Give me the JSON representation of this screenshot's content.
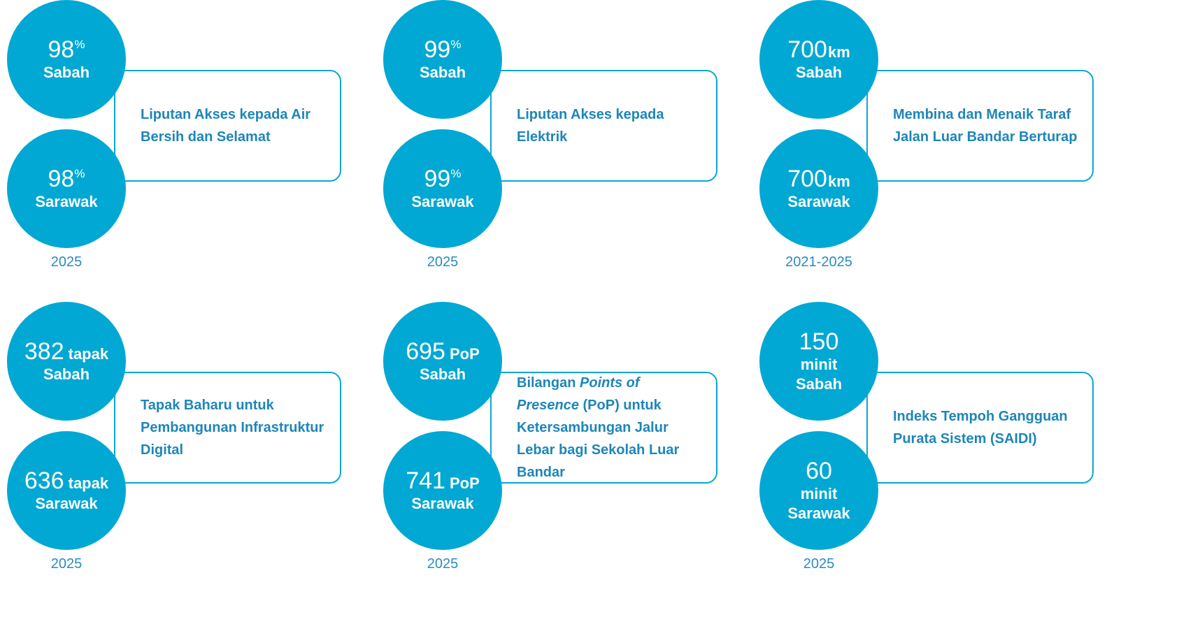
{
  "items": [
    {
      "circles": [
        {
          "value": 98,
          "unit": "%",
          "unit_style": "superscript",
          "region": "Sabah"
        },
        {
          "value": 98,
          "unit": "%",
          "unit_style": "superscript",
          "region": "Sarawak"
        }
      ],
      "description": [
        {
          "text": "Liputan Akses kepada Air Bersih dan Selamat"
        }
      ],
      "year": "2025"
    },
    {
      "circles": [
        {
          "value": 99,
          "unit": "%",
          "unit_style": "superscript",
          "region": "Sabah"
        },
        {
          "value": 99,
          "unit": "%",
          "unit_style": "superscript",
          "region": "Sarawak"
        }
      ],
      "description": [
        {
          "text": "Liputan Akses kepada Elektrik"
        }
      ],
      "year": "2025"
    },
    {
      "circles": [
        {
          "value": 700,
          "unit": "km",
          "unit_style": "inline",
          "region": "Sabah"
        },
        {
          "value": 700,
          "unit": "km",
          "unit_style": "inline",
          "region": "Sarawak"
        }
      ],
      "description": [
        {
          "text": "Membina dan Menaik Taraf Jalan Luar Bandar Berturap"
        }
      ],
      "year": "2021-2025"
    },
    {
      "circles": [
        {
          "value": 382,
          "unit": "tapak",
          "unit_style": "inline",
          "region": "Sabah"
        },
        {
          "value": 636,
          "unit": "tapak",
          "unit_style": "inline",
          "region": "Sarawak"
        }
      ],
      "description": [
        {
          "text": "Tapak Baharu untuk Pembangunan Infrastruktur Digital"
        }
      ],
      "year": "2025"
    },
    {
      "circles": [
        {
          "value": 695,
          "unit": "PoP",
          "unit_style": "inline",
          "region": "Sabah"
        },
        {
          "value": 741,
          "unit": "PoP",
          "unit_style": "inline",
          "region": "Sarawak"
        }
      ],
      "description": [
        {
          "text": "Bilangan "
        },
        {
          "text": "Points of Presence",
          "italic": true
        },
        {
          "text": " (PoP) untuk Ketersambungan Jalur Lebar bagi Sekolah Luar Bandar"
        }
      ],
      "year": "2025"
    },
    {
      "circles": [
        {
          "value": 150,
          "unit": "minit",
          "unit_style": "below",
          "region": "Sabah"
        },
        {
          "value": 60,
          "unit": "minit",
          "unit_style": "below",
          "region": "Sarawak"
        }
      ],
      "description": [
        {
          "text": "Indeks Tempoh Gangguan Purata Sistem (SAIDI)"
        }
      ],
      "year": "2025"
    }
  ]
}
